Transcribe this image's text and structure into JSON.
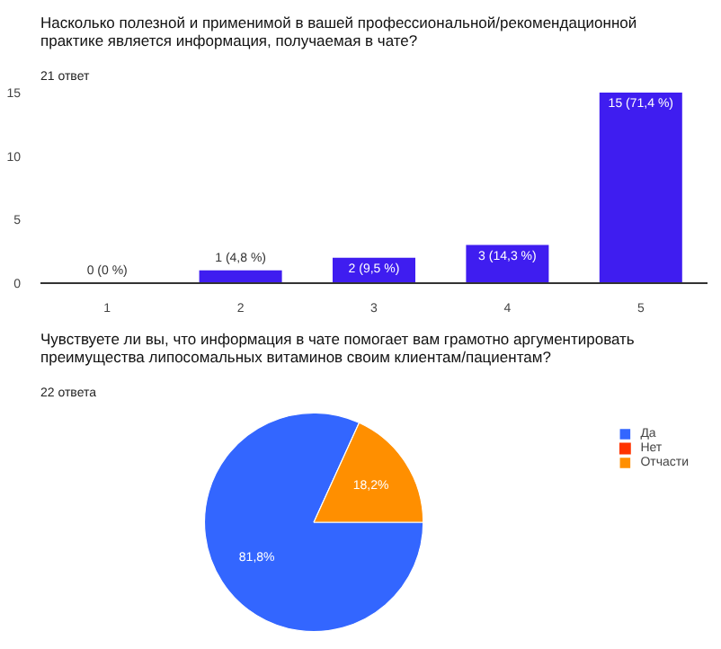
{
  "chart_data": [
    {
      "type": "bar",
      "title": "Насколько полезной и применимой в вашей профессиональной/рекомендационной практике является информация, получаемая в чате?",
      "subtitle": "21 ответ",
      "categories": [
        "1",
        "2",
        "3",
        "4",
        "5"
      ],
      "values": [
        0,
        1,
        2,
        3,
        15
      ],
      "value_labels": [
        "0 (0 %)",
        "1 (4,8 %)",
        "2 (9,5 %)",
        "3 (14,3 %)",
        "15 (71,4 %)"
      ],
      "color": "#3f1df0",
      "ylim": [
        0,
        15
      ],
      "yticks": [
        0,
        5,
        10,
        15
      ],
      "grid": false
    },
    {
      "type": "pie",
      "title": "Чувствуете ли вы, что информация в чате помогает вам грамотно аргументировать преимущества липосомальных витаминов своим клиентам/пациентам?",
      "subtitle": "22 ответа",
      "categories": [
        "Да",
        "Нет",
        "Отчасти"
      ],
      "values": [
        81.8,
        0,
        18.2
      ],
      "value_labels": [
        "81,8%",
        null,
        "18,2%"
      ],
      "colors": [
        "#3366ff",
        "#ff3300",
        "#ff8f00"
      ],
      "legend": "top right"
    }
  ]
}
